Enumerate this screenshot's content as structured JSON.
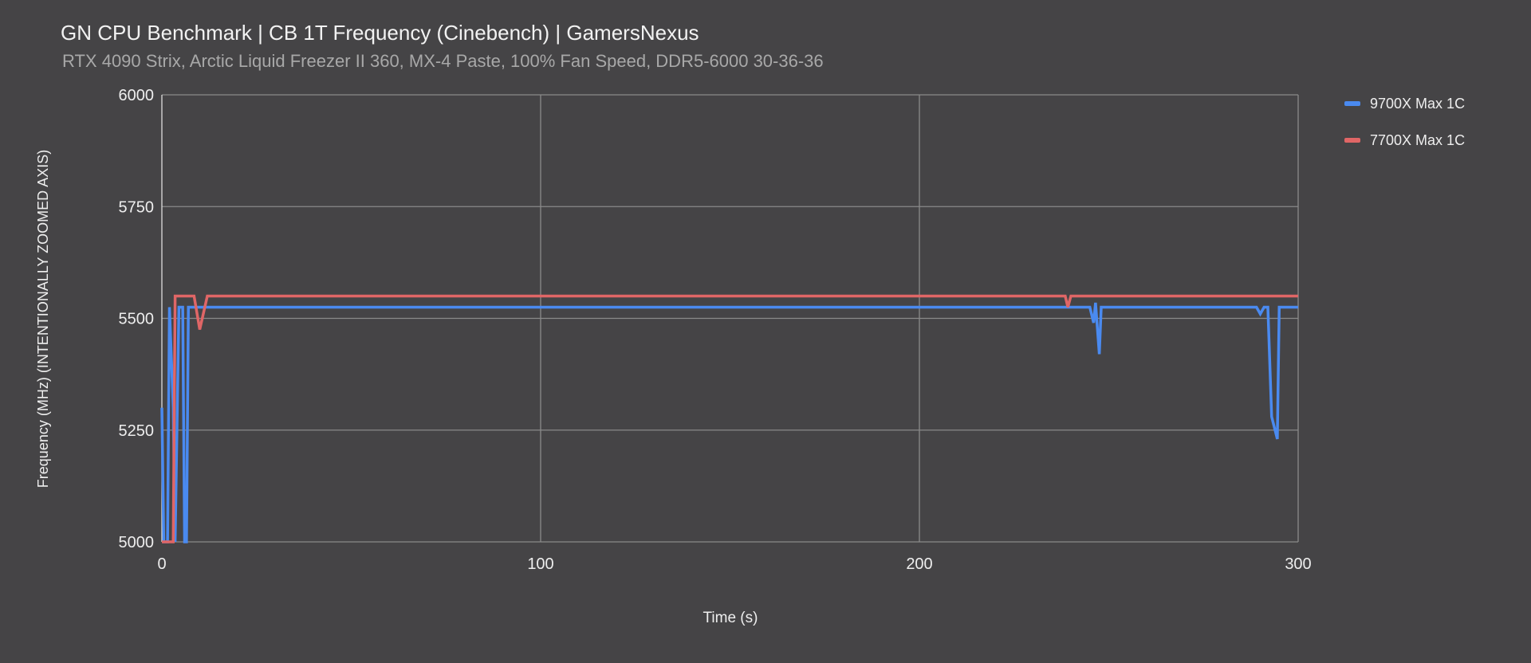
{
  "chart_data": {
    "type": "line",
    "title": "GN CPU Benchmark | CB 1T Frequency (Cinebench) | GamersNexus",
    "subtitle": "RTX 4090 Strix, Arctic Liquid Freezer II 360, MX-4 Paste, 100% Fan Speed, DDR5-6000 30-36-36",
    "xlabel": "Time (s)",
    "ylabel": "Frequency (MHz) (INTENTIONALLY ZOOMED AXIS)",
    "xlim": [
      0,
      300
    ],
    "ylim": [
      5000,
      6000
    ],
    "xticks": [
      0,
      100,
      200,
      300
    ],
    "yticks": [
      5000,
      5250,
      5500,
      5750,
      6000
    ],
    "grid": true,
    "legend_position": "right",
    "series": [
      {
        "name": "9700X Max 1C",
        "color": "#4a8af0",
        "x": [
          0,
          0.5,
          1.5,
          2,
          3,
          3.5,
          4.5,
          5.5,
          6,
          6.5,
          7,
          245,
          246,
          246.5,
          247.5,
          248,
          289,
          290,
          291,
          292,
          293,
          294.5,
          295,
          300
        ],
        "y": [
          5300,
          5000,
          5000,
          5525,
          5300,
          5000,
          5525,
          5525,
          5000,
          5000,
          5525,
          5525,
          5490,
          5535,
          5420,
          5525,
          5525,
          5510,
          5525,
          5525,
          5280,
          5230,
          5525,
          5525
        ]
      },
      {
        "name": "7700X Max 1C",
        "color": "#e06666",
        "x": [
          0,
          3,
          3.5,
          8.5,
          10,
          12,
          238.5,
          239.2,
          240,
          300
        ],
        "y": [
          5000,
          5000,
          5550,
          5550,
          5475,
          5550,
          5550,
          5525,
          5550,
          5550
        ]
      }
    ]
  }
}
